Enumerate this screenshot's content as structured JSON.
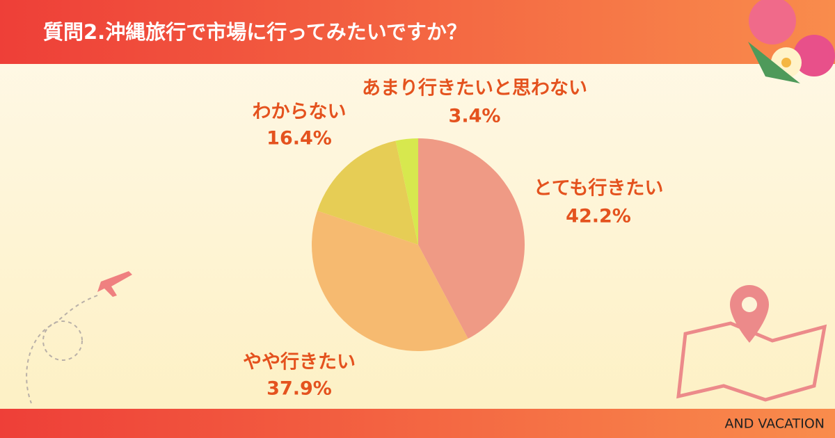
{
  "header": {
    "title": "質問2.沖縄旅行で市場に行ってみたいですか？"
  },
  "chart_data": {
    "type": "pie",
    "categories": [
      "とても行きたい",
      "やや行きたい",
      "わからない",
      "あまり行きたいと思わない"
    ],
    "values": [
      42.2,
      37.9,
      16.4,
      3.4
    ],
    "value_labels": [
      "42.2%",
      "37.9%",
      "16.4%",
      "3.4%"
    ],
    "colors": [
      "#ef9a85",
      "#f6ba70",
      "#e6cd55",
      "#d7e84e"
    ]
  },
  "footer": {
    "brand": "AND VACATION"
  }
}
